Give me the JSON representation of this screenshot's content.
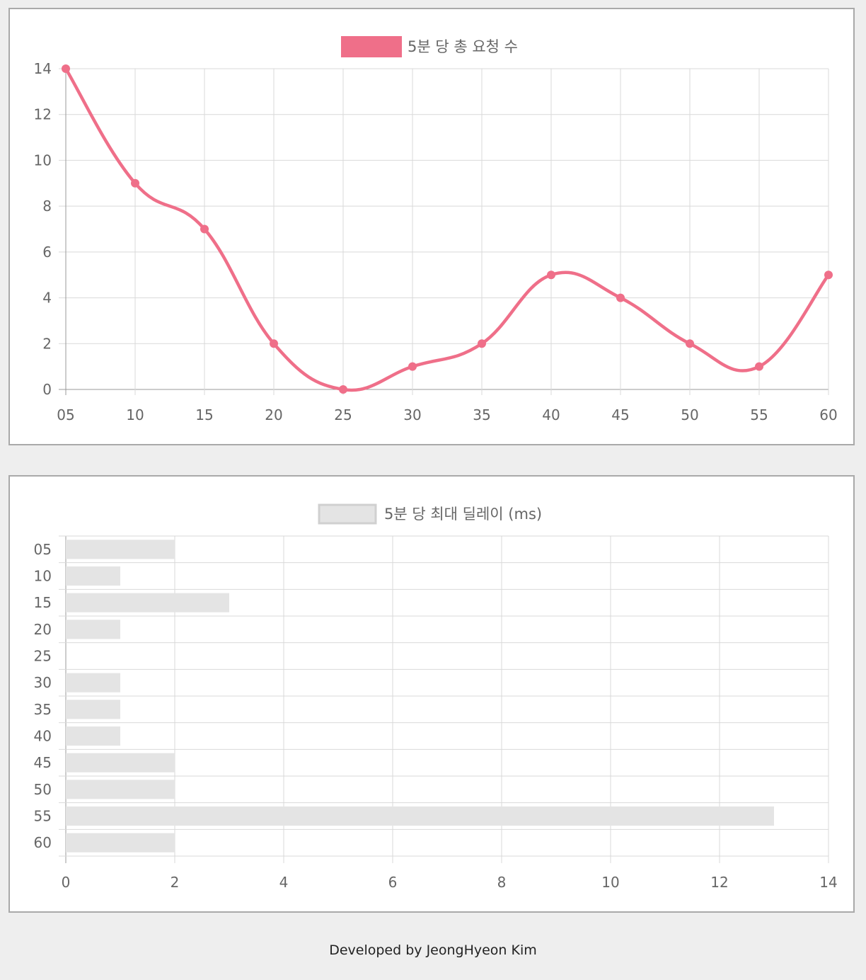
{
  "colors": {
    "line": "#ef6f89",
    "bar_fill": "#e4e4e4",
    "bar_border": "#d0d0d0",
    "grid": "#d9d9d9",
    "axis": "#9a9a9a",
    "tick_text": "#666666"
  },
  "footer": {
    "text": "Developed by JeongHyeon Kim"
  },
  "chart_data": [
    {
      "type": "line",
      "legend": "5분 당 총 요청 수",
      "legend_position": "top",
      "grid": true,
      "categories": [
        "05",
        "10",
        "15",
        "20",
        "25",
        "30",
        "35",
        "40",
        "45",
        "50",
        "55",
        "60"
      ],
      "values": [
        14,
        9,
        7,
        2,
        0,
        1,
        2,
        5,
        4,
        2,
        1,
        5
      ],
      "ylim": [
        0,
        14
      ],
      "yticks": [
        0,
        2,
        4,
        6,
        8,
        10,
        12,
        14
      ]
    },
    {
      "type": "bar",
      "orientation": "horizontal",
      "legend": "5분 당 최대 딜레이 (ms)",
      "legend_position": "top",
      "grid": true,
      "categories": [
        "05",
        "10",
        "15",
        "20",
        "25",
        "30",
        "35",
        "40",
        "45",
        "50",
        "55",
        "60"
      ],
      "values": [
        2,
        1,
        3,
        1,
        0,
        1,
        1,
        1,
        2,
        2,
        13,
        2
      ],
      "xlim": [
        0,
        14
      ],
      "xticks": [
        0,
        2,
        4,
        6,
        8,
        10,
        12,
        14
      ]
    }
  ]
}
